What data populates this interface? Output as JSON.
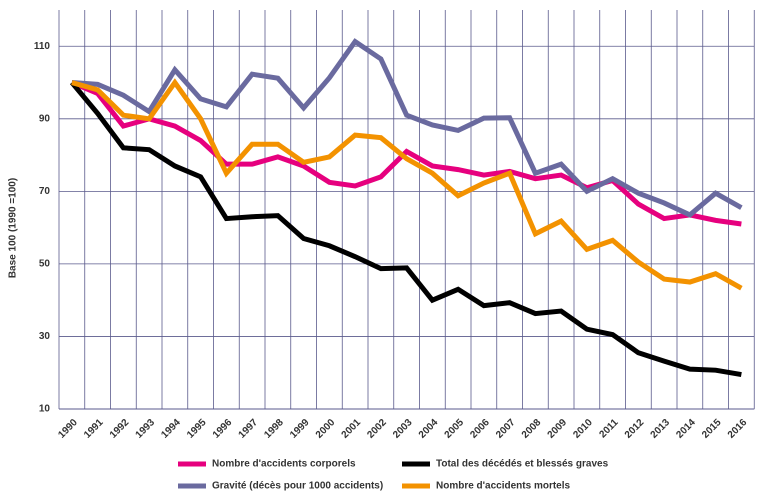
{
  "chart_data": {
    "type": "line",
    "y_label": "Base 100 (1990 =100)",
    "categories": [
      "1990",
      "1991",
      "1992",
      "1993",
      "1994",
      "1995",
      "1996",
      "1997",
      "1998",
      "1999",
      "2000",
      "2001",
      "2002",
      "2003",
      "2004",
      "2005",
      "2006",
      "2007",
      "2008",
      "2009",
      "2010",
      "2011",
      "2012",
      "2013",
      "2014",
      "2015",
      "2016"
    ],
    "series": [
      {
        "name": "Nombre d'accidents corporels",
        "color": "#e6007e",
        "values": [
          100,
          97,
          88,
          90,
          88,
          84,
          77.5,
          77.5,
          79.5,
          77,
          72.5,
          71.5,
          74,
          81,
          77,
          76,
          74.5,
          75.5,
          73.5,
          74.5,
          71,
          73,
          66.5,
          62.5,
          63.5,
          62,
          61
        ]
      },
      {
        "name": "Total des décédés et blessés graves",
        "color": "#000000",
        "values": [
          100,
          91.5,
          82,
          81.5,
          77,
          74,
          62.5,
          63,
          63.3,
          57,
          55,
          52,
          48.7,
          48.9,
          40,
          43,
          38.5,
          39.3,
          36.3,
          37,
          32,
          30.5,
          25.5,
          23.2,
          21,
          20.7,
          19.5
        ]
      },
      {
        "name": "Gravité (décès pour 1000 accidents)",
        "color": "#6a6a9f",
        "values": [
          100,
          99.5,
          96.5,
          92,
          103.5,
          95.5,
          93.3,
          102.3,
          101.2,
          93,
          101.3,
          111.3,
          106.5,
          91,
          88.3,
          86.8,
          90.2,
          90.3,
          75,
          77.5,
          70,
          73.5,
          69.5,
          66.8,
          63.5,
          69.5,
          65.5
        ]
      },
      {
        "name": "Nombre d'accidents mortels",
        "color": "#f39200",
        "values": [
          100,
          98,
          91,
          90,
          100,
          90,
          75,
          83,
          83,
          78,
          79.5,
          85.5,
          84.8,
          79,
          75,
          68.8,
          72.3,
          75,
          58.3,
          61.8,
          54,
          56.5,
          50.5,
          45.8,
          45,
          47.3,
          43.3
        ]
      }
    ],
    "ylim": [
      10,
      120
    ],
    "yticks": [
      10,
      30,
      50,
      70,
      90,
      110
    ],
    "grid": true,
    "legend": "bottom"
  }
}
